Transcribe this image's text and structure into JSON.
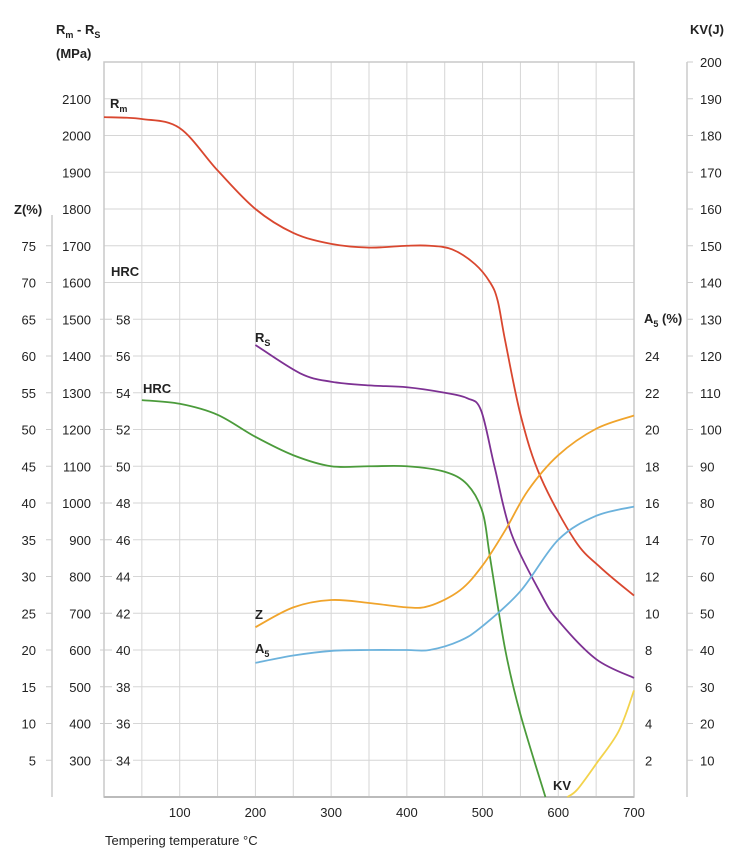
{
  "chart_data": {
    "type": "line",
    "xlabel": "Tempering temperature °C",
    "xlim": [
      0,
      700
    ],
    "x_ticks": [
      "100",
      "200",
      "300",
      "400",
      "500",
      "600",
      "700"
    ],
    "grid": true,
    "axes": {
      "mpa": {
        "title_main": "R",
        "title_sub1": "m",
        "title_mid": " - R",
        "title_sub2": "S",
        "title_unit": "(MPa)",
        "range": [
          200,
          2200
        ],
        "ticks": [
          "300",
          "400",
          "500",
          "600",
          "700",
          "800",
          "900",
          "1000",
          "1100",
          "1200",
          "1300",
          "1400",
          "1500",
          "1600",
          "1700",
          "1800",
          "1900",
          "2000",
          "2100"
        ]
      },
      "z": {
        "title": "Z(%)",
        "range": [
          0,
          100
        ],
        "ticks": [
          "5",
          "10",
          "15",
          "20",
          "25",
          "30",
          "35",
          "40",
          "45",
          "50",
          "55",
          "60",
          "65",
          "70",
          "75"
        ]
      },
      "hrc": {
        "title": "HRC",
        "range": [
          32,
          72
        ],
        "ticks": [
          "34",
          "36",
          "38",
          "40",
          "42",
          "44",
          "46",
          "48",
          "50",
          "52",
          "54",
          "56",
          "58"
        ]
      },
      "as": {
        "title_main": "A",
        "title_sub": "5",
        "title_unit": " (%)",
        "range": [
          0,
          40
        ],
        "ticks": [
          "2",
          "4",
          "6",
          "8",
          "10",
          "12",
          "14",
          "16",
          "18",
          "20",
          "22",
          "24"
        ]
      },
      "kv": {
        "title": "KV(J)",
        "range": [
          0,
          200
        ],
        "ticks": [
          "10",
          "20",
          "30",
          "40",
          "50",
          "60",
          "70",
          "80",
          "90",
          "100",
          "110",
          "120",
          "130",
          "140",
          "150",
          "160",
          "170",
          "180",
          "190",
          "200"
        ]
      }
    },
    "series": [
      {
        "name": "Rm",
        "label_main": "R",
        "label_sub": "m",
        "axis": "mpa",
        "color": "#d9472f",
        "x": [
          0,
          50,
          100,
          150,
          200,
          250,
          300,
          350,
          400,
          430,
          460,
          490,
          510,
          520,
          530,
          551,
          577,
          622,
          656,
          700
        ],
        "y": [
          2050,
          2045,
          2020,
          1905,
          1800,
          1735,
          1705,
          1695,
          1700,
          1700,
          1690,
          1650,
          1600,
          1550,
          1440,
          1233,
          1069,
          898,
          824,
          748
        ]
      },
      {
        "name": "Rs",
        "label_main": "R",
        "label_sub": "S",
        "axis": "mpa",
        "color": "#7d3193",
        "x": [
          200,
          259,
          300,
          350,
          400,
          450,
          480,
          498,
          516,
          538,
          577,
          600,
          650,
          700
        ],
        "y": [
          1430,
          1353,
          1330,
          1320,
          1315,
          1300,
          1285,
          1252,
          1097,
          917,
          753,
          680,
          575,
          524
        ]
      },
      {
        "name": "HRC",
        "label_main": "HRC",
        "label_sub": "",
        "axis": "hrc",
        "color": "#4b9b3b",
        "x": [
          50,
          100,
          150,
          200,
          250,
          300,
          350,
          400,
          450,
          480,
          500,
          510,
          530,
          550,
          583
        ],
        "y": [
          53.6,
          53.4,
          52.8,
          51.6,
          50.6,
          50.0,
          50.0,
          50.0,
          49.7,
          49.0,
          47.5,
          45.0,
          40.0,
          36.5,
          32.0
        ]
      },
      {
        "name": "Z",
        "label_main": "Z",
        "label_sub": "",
        "axis": "z",
        "color": "#f0a42c",
        "x": [
          200,
          250,
          300,
          350,
          400,
          430,
          470,
          500,
          530,
          560,
          600,
          650,
          700
        ],
        "y": [
          23.1,
          25.8,
          26.8,
          26.4,
          25.8,
          26.0,
          28.1,
          31.5,
          36.3,
          41.7,
          46.5,
          50.1,
          51.9
        ]
      },
      {
        "name": "A5",
        "label_main": "A",
        "label_sub": "5",
        "axis": "as",
        "color": "#6cb2dc",
        "x": [
          200,
          250,
          300,
          350,
          400,
          430,
          470,
          500,
          550,
          600,
          650,
          700
        ],
        "y": [
          7.3,
          7.7,
          7.95,
          8.0,
          8.0,
          8.0,
          8.5,
          9.3,
          11.2,
          14.0,
          15.3,
          15.8
        ]
      },
      {
        "name": "KV",
        "label_main": "KV",
        "label_sub": "",
        "axis": "kv",
        "color": "#f3d34c",
        "x": [
          612,
          625,
          650,
          680,
          700
        ],
        "y": [
          0,
          2,
          9,
          18,
          29
        ]
      }
    ]
  }
}
